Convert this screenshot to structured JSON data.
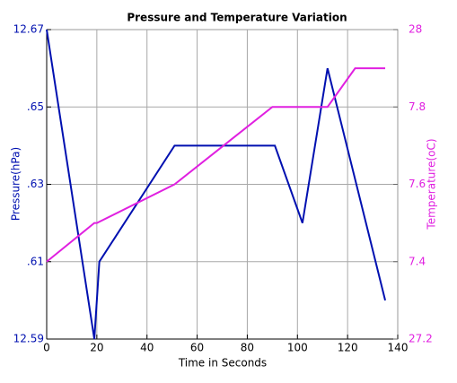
{
  "chart_data": {
    "type": "line",
    "title": "Pressure and Temperature Variation",
    "x_label": "Time in Seconds",
    "y_label": "Pressure(hPa)",
    "y2_label": "Temperature(oC)",
    "grid": true,
    "xlim": [
      0,
      140
    ],
    "xticks": [
      0,
      20,
      40,
      60,
      80,
      100,
      120,
      140
    ],
    "ylim": [
      12.59,
      12.67
    ],
    "yticks": [
      12.67,
      {
        "value": 12.65,
        "label": ".65"
      },
      {
        "value": 12.63,
        "label": ".63"
      },
      {
        "value": 12.61,
        "label": ".61"
      },
      12.59
    ],
    "y2lim": [
      27.2,
      28
    ],
    "y2ticks": [
      28,
      {
        "value": 27.8,
        "label": "7.8"
      },
      {
        "value": 27.6,
        "label": "7.6"
      },
      {
        "value": 27.4,
        "label": "7.4"
      },
      27.2
    ],
    "series": [
      {
        "name": "Pressure",
        "color": "#0010b0",
        "axis": "y",
        "x": [
          0,
          19,
          21,
          51,
          91,
          102,
          112,
          135
        ],
        "values": [
          12.67,
          12.59,
          12.61,
          12.64,
          12.64,
          12.62,
          12.66,
          12.6
        ]
      },
      {
        "name": "Temperature",
        "color": "#e020e0",
        "axis": "y2",
        "x": [
          0,
          19,
          20,
          51,
          90,
          112,
          123,
          135
        ],
        "values": [
          27.4,
          27.5,
          27.5,
          27.6,
          27.8,
          27.8,
          27.9,
          27.9
        ]
      }
    ]
  }
}
